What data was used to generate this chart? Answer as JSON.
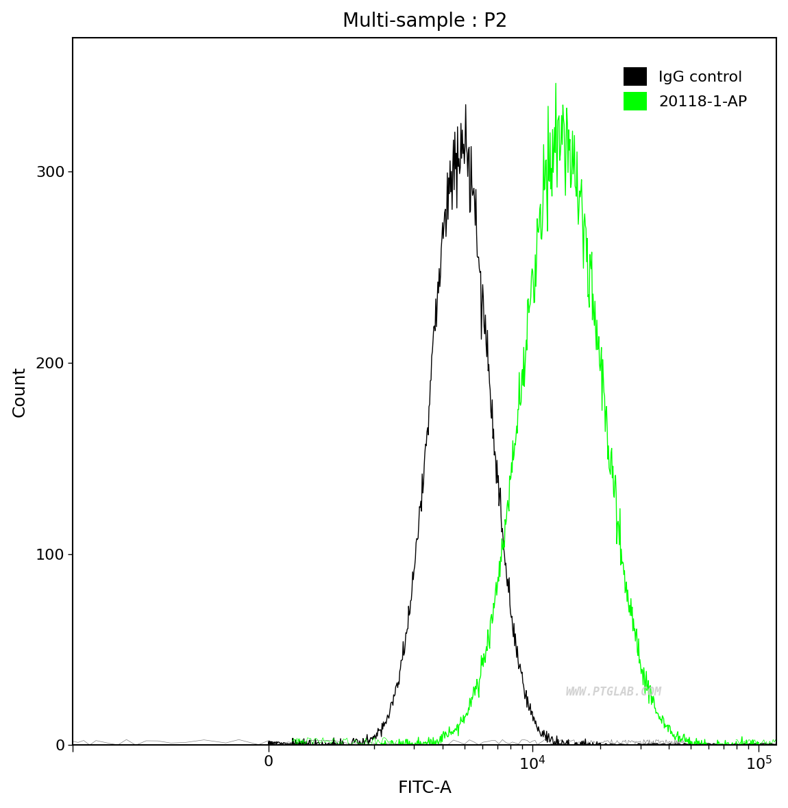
{
  "title": "Multi-sample : P2",
  "xlabel": "FITC-A",
  "ylabel": "Count",
  "background_color": "#ffffff",
  "igg_color": "#000000",
  "ap_color": "#00ff00",
  "legend_labels": [
    "IgG control",
    "20118-1-AP"
  ],
  "ylim": [
    0,
    370
  ],
  "yticks": [
    0,
    100,
    200,
    300
  ],
  "watermark": "WWW.PTGLAB.COM",
  "igg_peak_log": 3.68,
  "ap_peak_log": 4.13,
  "igg_peak_count": 313,
  "ap_peak_count": 318,
  "igg_spread": 0.13,
  "ap_spread": 0.175,
  "linthresh": 1000,
  "linscale": 0.15
}
